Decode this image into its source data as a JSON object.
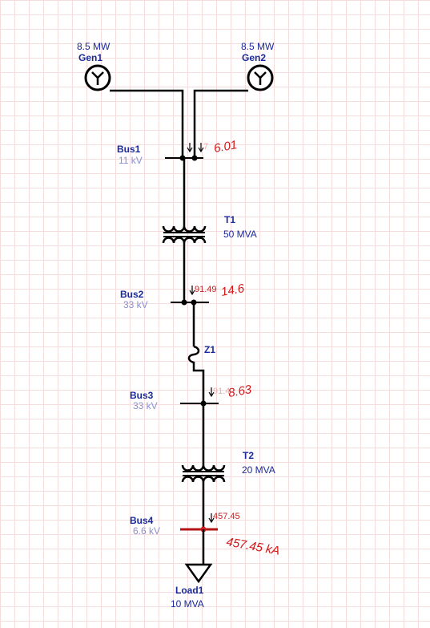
{
  "generators": [
    {
      "name": "Gen1",
      "rating": "8.5 MW"
    },
    {
      "name": "Gen2",
      "rating": "8.5 MW"
    }
  ],
  "buses": [
    {
      "name": "Bus1",
      "voltage": "11 kV",
      "current_label": "6.01",
      "faint_label": "7"
    },
    {
      "name": "Bus2",
      "voltage": "33 kV",
      "current_label": "14.6",
      "small_label": "91.49"
    },
    {
      "name": "Bus3",
      "voltage": "33 kV",
      "current_label": "8.63",
      "faint_label": "91.4"
    },
    {
      "name": "Bus4",
      "voltage": "6.6 kV",
      "current_label": "457.45 kA",
      "small_label": "457.45"
    }
  ],
  "transformers": [
    {
      "name": "T1",
      "rating": "50 MVA"
    },
    {
      "name": "T2",
      "rating": "20 MVA"
    }
  ],
  "impedance": {
    "name": "Z1"
  },
  "load": {
    "name": "Load1",
    "rating": "10 MVA"
  },
  "colors": {
    "text_blue": "#1a2a9a",
    "voltage_text": "#8a8fd6",
    "fault_red": "#d21818",
    "faulted_bus": "#b51414",
    "grid": "#f6dcdc"
  }
}
